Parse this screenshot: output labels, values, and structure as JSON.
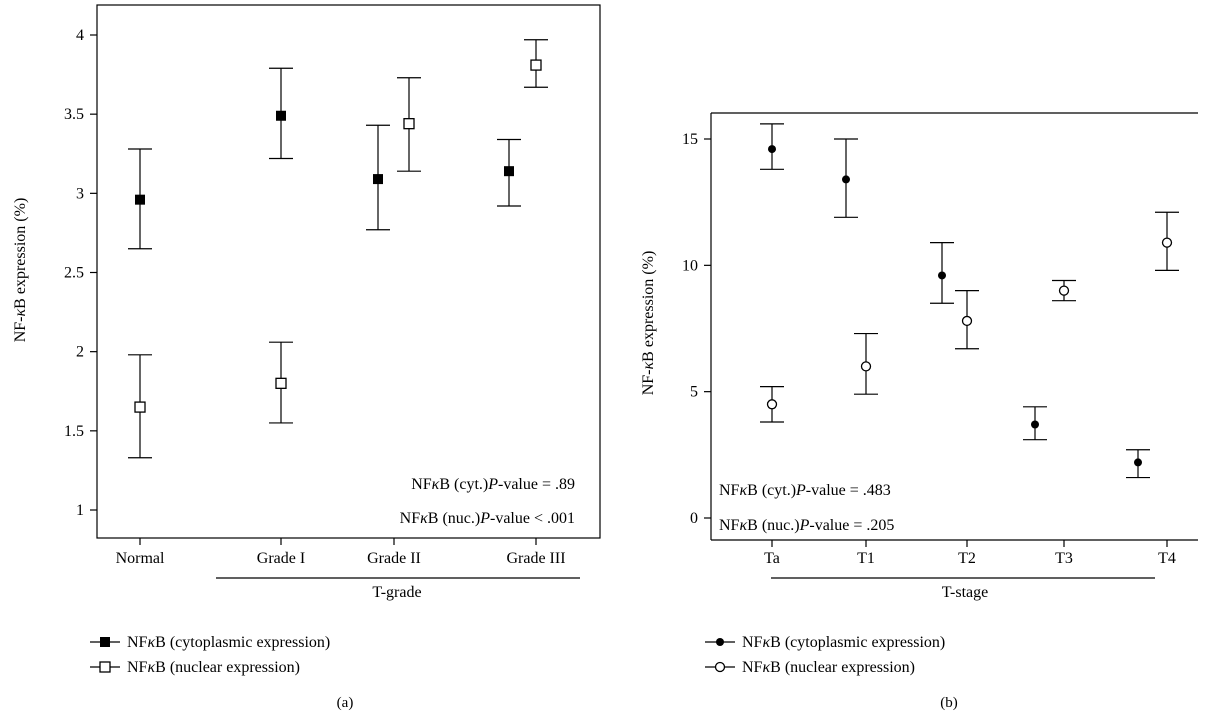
{
  "chart_data": [
    {
      "panel": "(a)",
      "type": "scatter",
      "ylabel_pre": "NF-",
      "ylabel_kappa": "κ",
      "ylabel_post": "B expression (%)",
      "xlabel": "T-grade",
      "ylim": [
        0.8,
        4.2
      ],
      "yticks": [
        1,
        1.5,
        2,
        2.5,
        3,
        3.5,
        4
      ],
      "grid": false,
      "categories": [
        "Normal",
        "Grade I",
        "Grade II",
        "Grade III"
      ],
      "series": [
        {
          "name": "NFκB (cytoplasmic expression)",
          "label_pre": "NF",
          "label_kappa": "κ",
          "label_post": "B (cytoplasmic expression)",
          "marker": "filled-square",
          "values": [
            2.96,
            3.49,
            3.09,
            3.14
          ],
          "err_low": [
            2.65,
            3.22,
            2.77,
            2.92
          ],
          "err_high": [
            3.28,
            3.79,
            3.43,
            3.34
          ]
        },
        {
          "name": "NFκB (nuclear expression)",
          "label_pre": "NF",
          "label_kappa": "κ",
          "label_post": "B (nuclear expression)",
          "marker": "open-square",
          "values": [
            1.65,
            1.8,
            3.44,
            3.81
          ],
          "err_low": [
            1.33,
            1.55,
            3.14,
            3.67
          ],
          "err_high": [
            1.98,
            2.06,
            3.73,
            3.97
          ]
        }
      ],
      "annotations": [
        {
          "pre": "NF",
          "kappa": "κ",
          "mid": "B (cyt.)",
          "p": "P",
          "post": "-value = .89"
        },
        {
          "pre": "NF",
          "kappa": "κ",
          "mid": "B (nuc.)",
          "p": "P",
          "post": "-value < .001"
        }
      ]
    },
    {
      "panel": "(b)",
      "type": "scatter",
      "ylabel_pre": "NF-",
      "ylabel_kappa": "κ",
      "ylabel_post": "B expression (%)",
      "xlabel": "T-stage",
      "ylim": [
        -0.7,
        16.2
      ],
      "yticks": [
        0,
        5,
        10,
        15
      ],
      "grid": false,
      "categories": [
        "Ta",
        "T1",
        "T2",
        "T3",
        "T4"
      ],
      "series": [
        {
          "name": "NFκB (cytoplasmic expression)",
          "label_pre": "NF",
          "label_kappa": "κ",
          "label_post": "B (cytoplasmic expression)",
          "marker": "filled-circle",
          "values": [
            14.6,
            13.4,
            9.6,
            3.7,
            2.2
          ],
          "err_low": [
            13.8,
            11.9,
            8.5,
            3.1,
            1.6
          ],
          "err_high": [
            15.6,
            15.0,
            10.9,
            4.4,
            2.7
          ]
        },
        {
          "name": "NFκB (nuclear expression)",
          "label_pre": "NF",
          "label_kappa": "κ",
          "label_post": "B (nuclear expression)",
          "marker": "open-circle",
          "values": [
            4.5,
            6.0,
            7.8,
            9.0,
            10.9
          ],
          "err_low": [
            3.8,
            4.9,
            6.7,
            8.6,
            9.8
          ],
          "err_high": [
            5.2,
            7.3,
            9.0,
            9.4,
            12.1
          ]
        }
      ],
      "annotations": [
        {
          "pre": "NF",
          "kappa": "κ",
          "mid": "B (cyt.)",
          "p": "P",
          "post": "-value = .483"
        },
        {
          "pre": "NF",
          "kappa": "κ",
          "mid": "B (nuc.)",
          "p": "P",
          "post": "-value = .205"
        }
      ]
    }
  ]
}
